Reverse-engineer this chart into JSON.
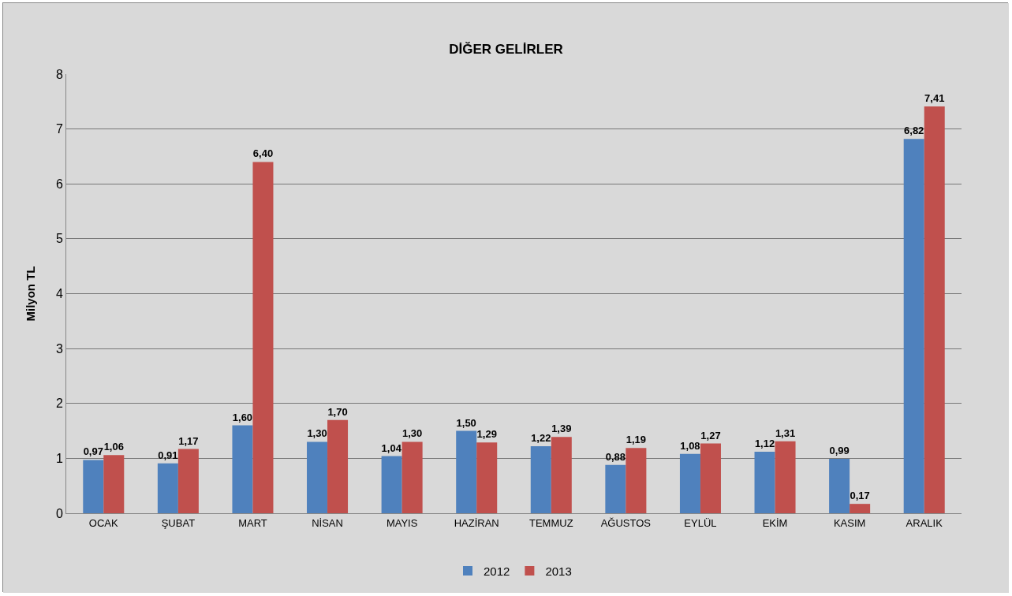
{
  "chart_data": {
    "type": "bar",
    "title": "DİĞER GELİRLER",
    "ylabel": "Milyon TL",
    "categories": [
      "OCAK",
      "ŞUBAT",
      "MART",
      "NİSAN",
      "MAYIS",
      "HAZİRAN",
      "TEMMUZ",
      "AĞUSTOS",
      "EYLÜL",
      "EKİM",
      "KASIM",
      "ARALIK"
    ],
    "series": [
      {
        "name": "2012",
        "color": "#4f81bd",
        "values": [
          0.97,
          0.91,
          1.6,
          1.3,
          1.04,
          1.5,
          1.22,
          0.88,
          1.08,
          1.12,
          0.99,
          6.82
        ],
        "value_labels": [
          "0,97",
          "0,91",
          "1,60",
          "1,30",
          "1,04",
          "1,50",
          "1,22",
          "0,88",
          "1,08",
          "1,12",
          "0,99",
          "6,82"
        ]
      },
      {
        "name": "2013",
        "color": "#c0504d",
        "values": [
          1.06,
          1.17,
          6.4,
          1.7,
          1.3,
          1.29,
          1.39,
          1.19,
          1.27,
          1.31,
          0.17,
          7.41
        ],
        "value_labels": [
          "1,06",
          "1,17",
          "6,40",
          "1,70",
          "1,30",
          "1,29",
          "1,39",
          "1,19",
          "1,27",
          "1,31",
          "0,17",
          "7,41"
        ]
      }
    ],
    "ylim": [
      0,
      8
    ],
    "yticks": [
      0,
      1,
      2,
      3,
      4,
      5,
      6,
      7,
      8
    ],
    "grid": "y",
    "legend": "bottom"
  }
}
